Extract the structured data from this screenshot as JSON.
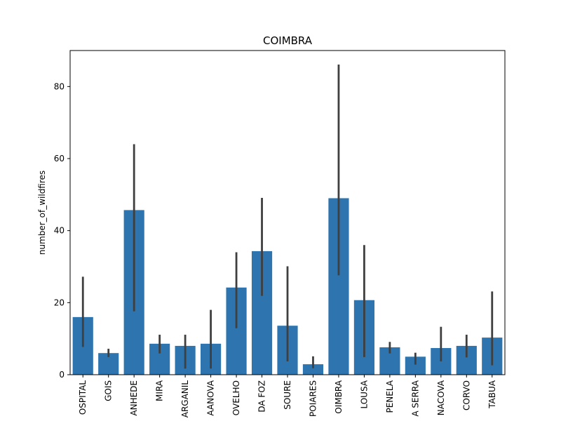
{
  "chart_data": {
    "type": "bar",
    "title": "COIMBRA",
    "xlabel": "",
    "ylabel": "number_of_wildfires",
    "ylim": [
      0,
      90
    ],
    "yticks": [
      0,
      20,
      40,
      60,
      80
    ],
    "grid": false,
    "categories": [
      "OSPITAL",
      "GOIS",
      "ANHEDE",
      "MIRA",
      "ARGANIL",
      "AANOVA",
      "OVELHO",
      "DA FOZ",
      "SOURE",
      "POIARES",
      "OIMBRA",
      "LOUSA",
      "PENELA",
      "A SERRA",
      "NACOVA",
      "CORVO",
      "TABUA"
    ],
    "values": [
      16.0,
      6.0,
      45.7,
      8.6,
      8.0,
      8.6,
      24.2,
      34.3,
      13.6,
      2.9,
      49.0,
      20.7,
      7.6,
      5.0,
      7.4,
      8.0,
      10.3
    ],
    "error_low": [
      7.7,
      4.9,
      17.6,
      5.9,
      1.7,
      1.7,
      12.9,
      21.9,
      3.7,
      1.8,
      27.6,
      4.9,
      5.9,
      2.8,
      3.7,
      4.8,
      2.6
    ],
    "error_high": [
      27.2,
      7.2,
      64.0,
      11.1,
      11.1,
      18.0,
      34.0,
      49.1,
      30.1,
      5.1,
      86.1,
      36.0,
      9.1,
      6.1,
      13.3,
      11.1,
      23.1
    ],
    "bar_color": "#2e75b0",
    "errorbar_color": "#3f3f3f"
  }
}
